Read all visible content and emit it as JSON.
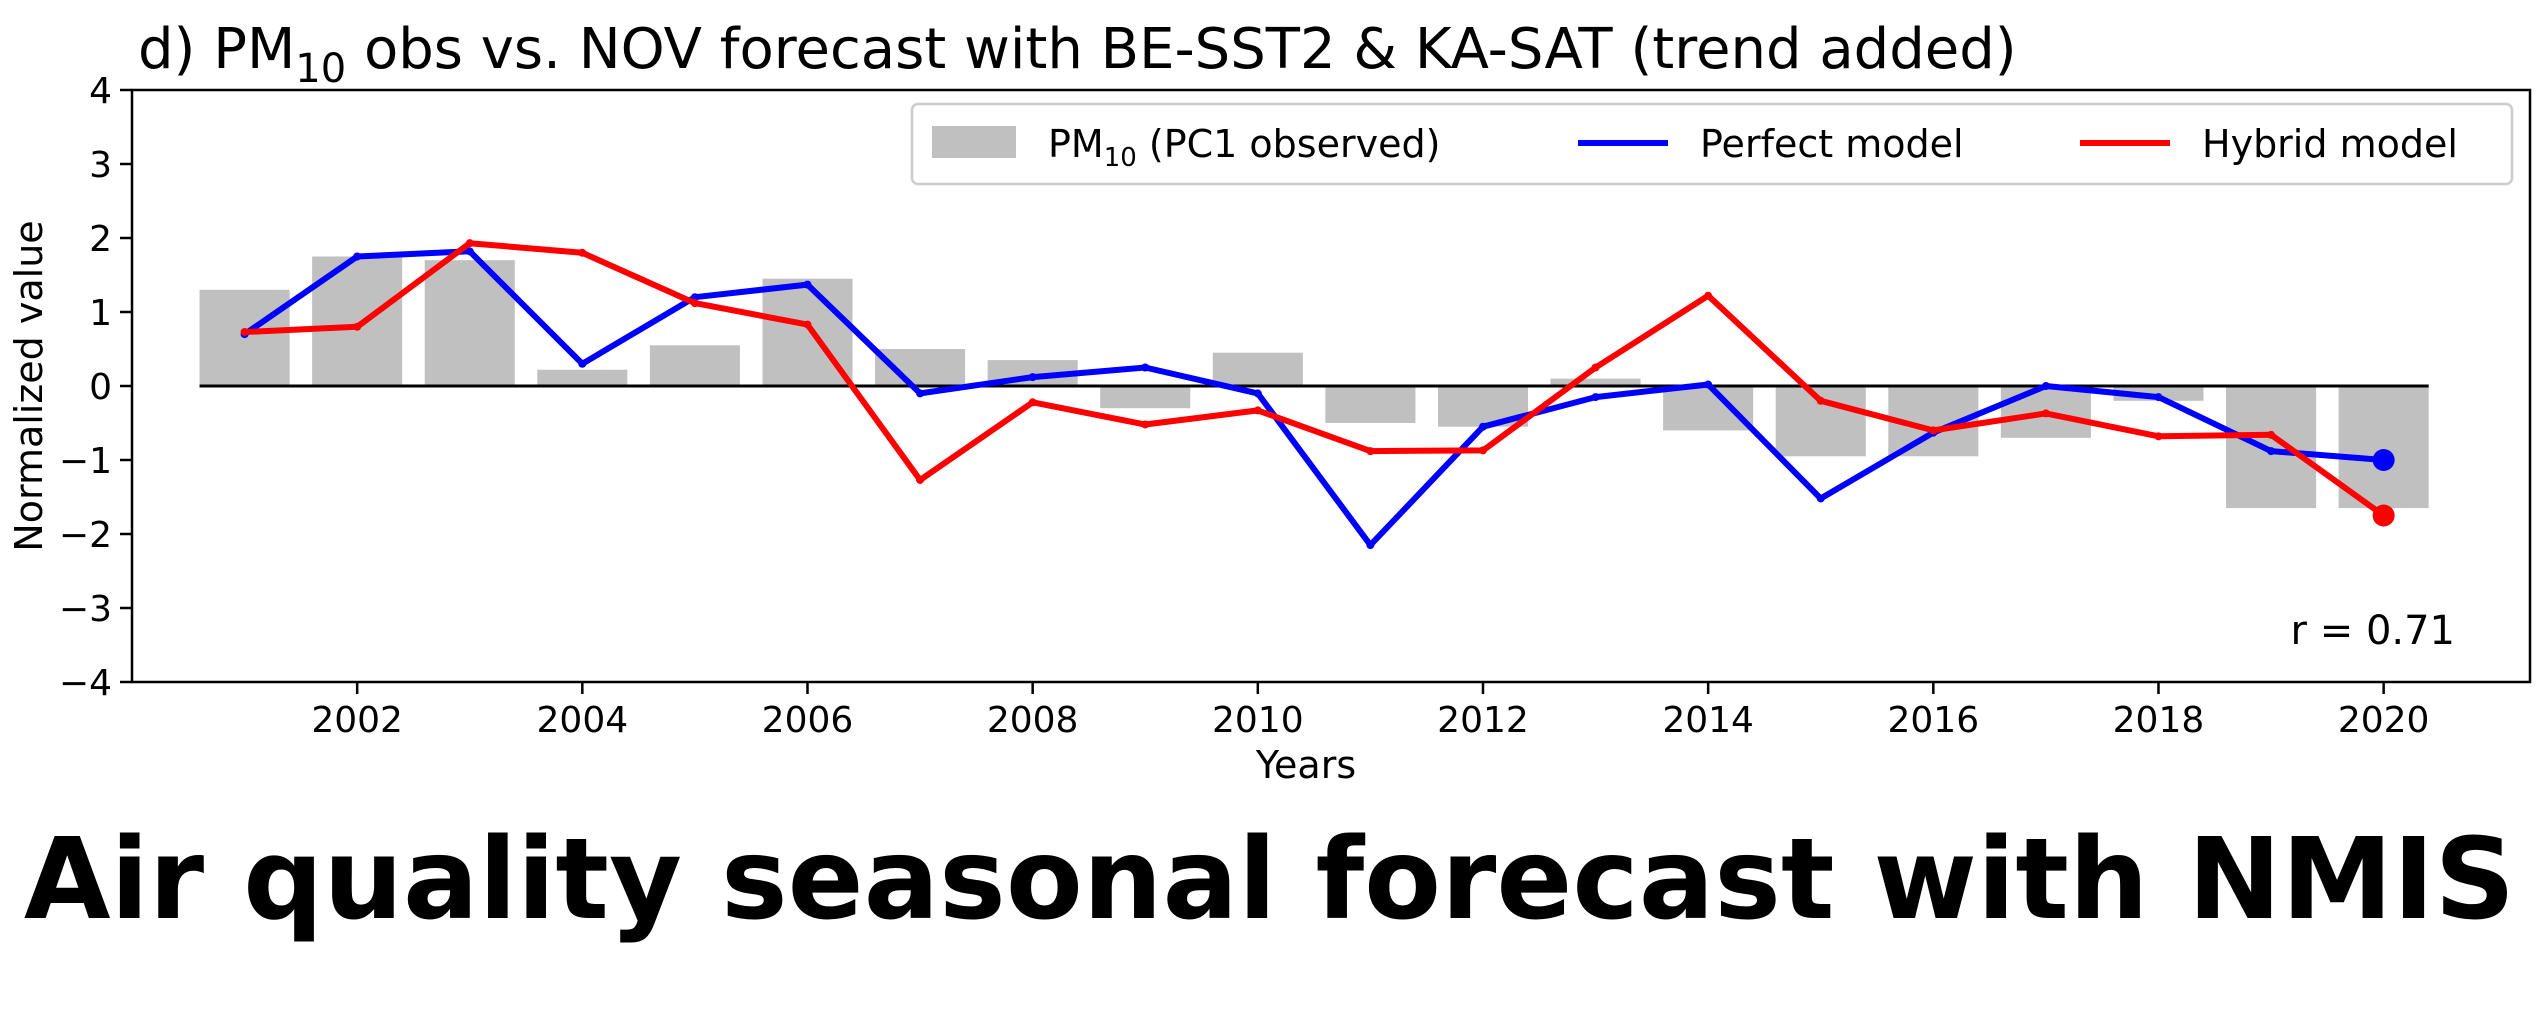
{
  "chart_data": {
    "type": "bar+line",
    "title_prefix": "d) PM",
    "title_sub": "10",
    "title_suffix": " obs vs. NOV forecast with BE-SST2 & KA-SAT (trend added)",
    "xlabel": "Years",
    "ylabel": "Normalized value",
    "xlim": [
      2000.0,
      2021.3
    ],
    "ylim": [
      -4,
      4
    ],
    "yticks": [
      4,
      3,
      2,
      1,
      0,
      -1,
      -2,
      -3,
      -4
    ],
    "ytick_labels": [
      "4",
      "3",
      "2",
      "1",
      "0",
      "−1",
      "−2",
      "−3",
      "−4"
    ],
    "xticks": [
      2002,
      2004,
      2006,
      2008,
      2010,
      2012,
      2014,
      2016,
      2018,
      2020
    ],
    "xtick_labels": [
      "2002",
      "2004",
      "2006",
      "2008",
      "2010",
      "2012",
      "2014",
      "2016",
      "2018",
      "2020"
    ],
    "years": [
      2001,
      2002,
      2003,
      2004,
      2005,
      2006,
      2007,
      2008,
      2009,
      2010,
      2011,
      2012,
      2013,
      2014,
      2015,
      2016,
      2017,
      2018,
      2019,
      2020
    ],
    "bars": {
      "name_prefix": "PM",
      "name_sub": "10",
      "name_suffix": " (PC1 observed)",
      "color": "#c0c0c0",
      "values": [
        1.3,
        1.75,
        1.7,
        0.22,
        0.55,
        1.45,
        0.5,
        0.35,
        -0.3,
        0.45,
        -0.5,
        -0.55,
        0.1,
        -0.6,
        -0.95,
        -0.95,
        -0.7,
        -0.2,
        -1.65,
        -1.65
      ]
    },
    "series": [
      {
        "name": "Perfect model",
        "color": "#0000ff",
        "values": [
          0.7,
          1.75,
          1.82,
          0.3,
          1.2,
          1.37,
          -0.1,
          0.12,
          0.25,
          -0.1,
          -2.15,
          -0.55,
          -0.15,
          0.02,
          -1.52,
          -0.63,
          0.0,
          -0.15,
          -0.88,
          -1.0
        ]
      },
      {
        "name": "Hybrid model",
        "color": "#ff0000",
        "values": [
          0.73,
          0.8,
          1.93,
          1.8,
          1.12,
          0.83,
          -1.27,
          -0.22,
          -0.52,
          -0.33,
          -0.88,
          -0.87,
          0.25,
          1.22,
          -0.2,
          -0.6,
          -0.37,
          -0.68,
          -0.66,
          -1.75
        ]
      }
    ],
    "annotation": "r = 0.71",
    "legend_position": "top-right",
    "zero_line": true
  },
  "caption": "Air quality seasonal forecast with NMIS"
}
